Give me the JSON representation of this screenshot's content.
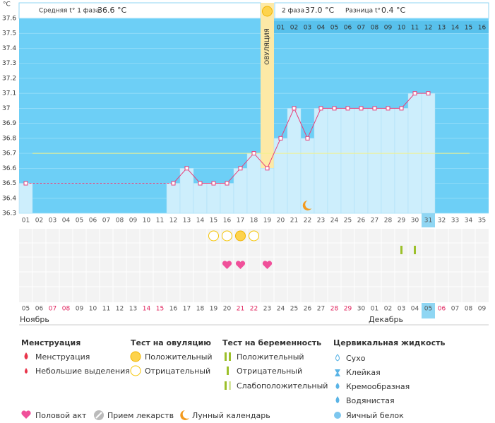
{
  "chart_data": {
    "type": "line",
    "y_unit": "°C",
    "phase1_label": "Средняя t° 1 фаза",
    "phase1_value": "36.6 °C",
    "phase2_label": "2 фаза",
    "phase2_value": "37.0 °C",
    "diff_label": "Разница t°",
    "diff_value": "0.4 °C",
    "ovulation_label": "ОВУЛЯЦИЯ",
    "ovulation_day": 19,
    "coverline": 36.7,
    "categories": [
      "01",
      "02",
      "03",
      "04",
      "05",
      "06",
      "07",
      "08",
      "09",
      "10",
      "11",
      "12",
      "13",
      "14",
      "15",
      "16",
      "17",
      "18",
      "19",
      "20",
      "21",
      "22",
      "23",
      "24",
      "25",
      "26",
      "27",
      "28",
      "29",
      "30",
      "31",
      "32",
      "33",
      "34",
      "35"
    ],
    "values": [
      36.5,
      null,
      null,
      null,
      null,
      null,
      null,
      null,
      null,
      null,
      null,
      36.5,
      36.6,
      36.5,
      36.5,
      36.5,
      36.6,
      36.7,
      36.6,
      36.8,
      37.0,
      36.8,
      37.0,
      37.0,
      37.0,
      37.0,
      37.0,
      37.0,
      37.0,
      37.1,
      37.1,
      null,
      null,
      null,
      null
    ],
    "phase2_days": [
      "01",
      "02",
      "03",
      "04",
      "05",
      "06",
      "07",
      "08",
      "09",
      "10",
      "11",
      "12",
      "13",
      "14",
      "15",
      "16"
    ],
    "dates": [
      "05",
      "06",
      "07",
      "08",
      "09",
      "10",
      "11",
      "12",
      "13",
      "14",
      "15",
      "16",
      "17",
      "18",
      "19",
      "20",
      "21",
      "22",
      "23",
      "24",
      "25",
      "26",
      "27",
      "28",
      "29",
      "30",
      "01",
      "02",
      "03",
      "04",
      "05",
      "06",
      "07",
      "08",
      "09"
    ],
    "weekend_days": [
      3,
      4,
      10,
      11,
      17,
      18,
      24,
      25,
      32
    ],
    "months": [
      {
        "label": "Ноябрь",
        "day": 1
      },
      {
        "label": "Декабрь",
        "day": 27
      }
    ],
    "highlight_day": 31,
    "ylim": [
      36.3,
      37.6
    ],
    "yticks": [
      36.3,
      36.4,
      36.5,
      36.6,
      36.7,
      36.8,
      36.9,
      37,
      37.1,
      37.2,
      37.3,
      37.4,
      37.5,
      37.6
    ],
    "ovulation_positive": [
      17
    ],
    "ovulation_negative": [
      15,
      16,
      18
    ],
    "intercourse": [
      16,
      17,
      19
    ],
    "pregnancy_positive": [
      29,
      30
    ],
    "moon": [
      22
    ]
  },
  "legend": {
    "menstruation": {
      "title": "Менструация",
      "items": [
        "Менструация",
        "Небольшие выделения"
      ]
    },
    "ovulation_test": {
      "title": "Тест на овуляцию",
      "items": [
        "Положительный",
        "Отрицательный"
      ]
    },
    "pregnancy_test": {
      "title": "Тест на беременность",
      "items": [
        "Положительный",
        "Отрицательный",
        "Слабоположительный"
      ]
    },
    "cervical": {
      "title": "Цервикальная жидкость",
      "items": [
        "Сухо",
        "Клейкая",
        "Кремообразная",
        "Водянистая",
        "Яичный белок"
      ]
    },
    "other": [
      "Половой акт",
      "Прием лекарств",
      "Лунный календарь"
    ]
  }
}
